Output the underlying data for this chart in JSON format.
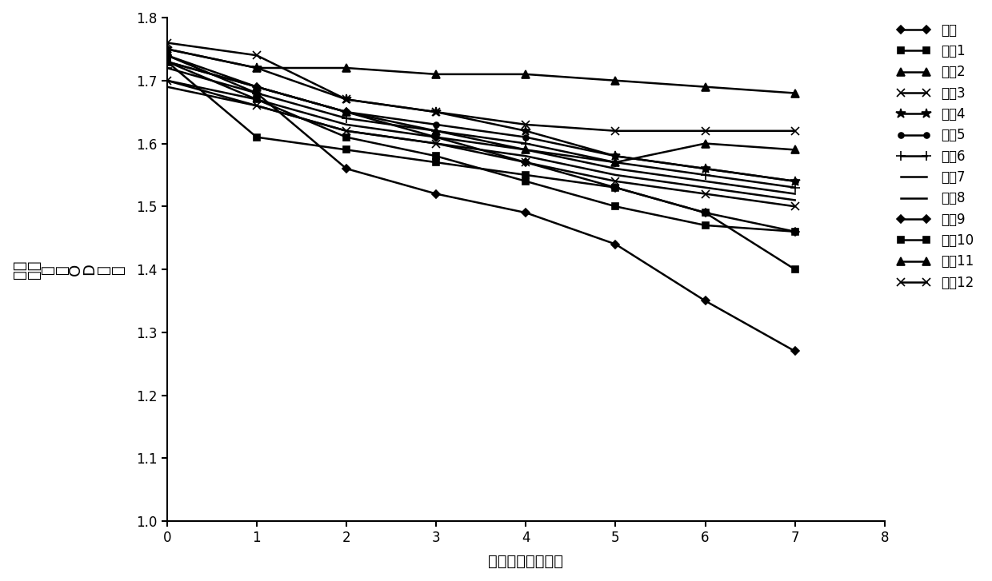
{
  "x": [
    0,
    1,
    2,
    3,
    4,
    5,
    6,
    7
  ],
  "series": [
    {
      "label": "对照",
      "marker": "D",
      "markersize": 5,
      "values": [
        1.74,
        1.69,
        1.65,
        1.61,
        1.57,
        1.53,
        1.49,
        1.46
      ]
    },
    {
      "label": "实奡1",
      "marker": "s",
      "markersize": 6,
      "values": [
        1.73,
        1.61,
        1.59,
        1.57,
        1.55,
        1.53,
        1.49,
        1.4
      ]
    },
    {
      "label": "实奡2",
      "marker": "^",
      "markersize": 7,
      "values": [
        1.75,
        1.72,
        1.72,
        1.71,
        1.71,
        1.7,
        1.69,
        1.68
      ]
    },
    {
      "label": "实奡3",
      "marker": "x",
      "markersize": 7,
      "values": [
        1.76,
        1.74,
        1.67,
        1.65,
        1.63,
        1.62,
        1.62,
        1.62
      ]
    },
    {
      "label": "实奡4",
      "marker": "*",
      "markersize": 9,
      "values": [
        1.75,
        1.72,
        1.67,
        1.65,
        1.62,
        1.58,
        1.56,
        1.54
      ]
    },
    {
      "label": "实奡5",
      "marker": "o",
      "markersize": 5,
      "values": [
        1.73,
        1.69,
        1.65,
        1.63,
        1.61,
        1.58,
        1.56,
        1.54
      ]
    },
    {
      "label": "实奡6",
      "marker": "+",
      "markersize": 8,
      "values": [
        1.72,
        1.68,
        1.64,
        1.62,
        1.6,
        1.57,
        1.55,
        1.53
      ]
    },
    {
      "label": "实奡7",
      "marker": "None",
      "markersize": 0,
      "values": [
        1.7,
        1.67,
        1.63,
        1.61,
        1.59,
        1.56,
        1.54,
        1.52
      ]
    },
    {
      "label": "实奡8",
      "marker": "None",
      "markersize": 0,
      "values": [
        1.69,
        1.66,
        1.62,
        1.6,
        1.58,
        1.55,
        1.53,
        1.51
      ]
    },
    {
      "label": "实奡9",
      "marker": "D",
      "markersize": 5,
      "values": [
        1.74,
        1.68,
        1.56,
        1.52,
        1.49,
        1.44,
        1.35,
        1.27
      ]
    },
    {
      "label": "实奡10",
      "marker": "s",
      "markersize": 6,
      "values": [
        1.73,
        1.67,
        1.61,
        1.58,
        1.54,
        1.5,
        1.47,
        1.46
      ]
    },
    {
      "label": "实奡11",
      "marker": "^",
      "markersize": 7,
      "values": [
        1.73,
        1.69,
        1.65,
        1.62,
        1.59,
        1.57,
        1.6,
        1.59
      ]
    },
    {
      "label": "实奡12",
      "marker": "x",
      "markersize": 7,
      "values": [
        1.7,
        1.66,
        1.62,
        1.6,
        1.57,
        1.54,
        1.52,
        1.5
      ]
    }
  ],
  "xlabel": "热加速时间（天）",
  "ylabel": "空白吸光度（OD値）",
  "ylabel_multiline": "空白\n吸光\n度\n（\nO\nD\n値\n）",
  "xlim": [
    0,
    8
  ],
  "ylim": [
    1.0,
    1.8
  ],
  "yticks": [
    1.0,
    1.1,
    1.2,
    1.3,
    1.4,
    1.5,
    1.6,
    1.7,
    1.8
  ],
  "xticks": [
    0,
    1,
    2,
    3,
    4,
    5,
    6,
    7,
    8
  ],
  "line_color": "#000000",
  "background_color": "#ffffff",
  "fontsize_label": 14,
  "fontsize_tick": 12,
  "fontsize_legend": 12
}
